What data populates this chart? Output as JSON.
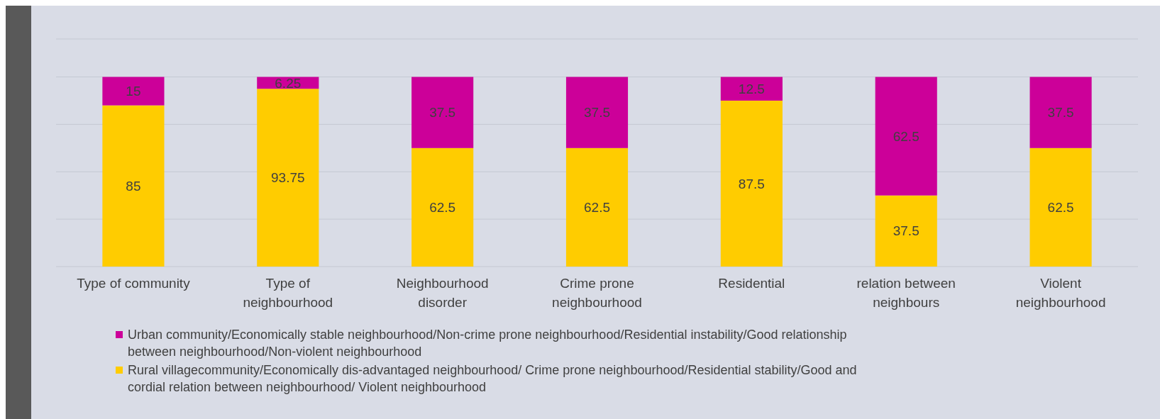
{
  "chart_data": {
    "type": "bar",
    "stacked": true,
    "categories": [
      "Type of community",
      "Type of neighbourhood",
      "Neighbourhood disorder",
      "Crime prone neighbourhood",
      "Residential",
      "relation between neighbours",
      "Violent neighbourhood"
    ],
    "series": [
      {
        "name": "Rural villagecommunity/Economically dis-advantaged neighbourhood/ Crime prone neighbourhood/Residential stability/Good and cordial relation between neighbourhood/ Violent neighbourhood",
        "color": "#ffcc00",
        "values": [
          85,
          93.75,
          62.5,
          62.5,
          87.5,
          37.5,
          62.5
        ]
      },
      {
        "name": "Urban community/Economically stable neighbourhood/Non-crime prone neighbourhood/Residential instability/Good relationship between neighbourhood/Non-violent neighbourhood",
        "color": "#cc0099",
        "values": [
          15,
          6.25,
          37.5,
          37.5,
          12.5,
          62.5,
          37.5
        ]
      }
    ],
    "ylim": [
      0,
      120
    ],
    "yticks": [
      {
        "value": 0,
        "label": null
      },
      {
        "value": 25,
        "label": null
      },
      {
        "value": 50,
        "label": null
      },
      {
        "value": 75,
        "label": null
      },
      {
        "value": 100,
        "label": null
      },
      {
        "value": 120,
        "label": null
      }
    ],
    "tick_labels": "x",
    "grid": "y",
    "data_labels": true,
    "legend": "bottom"
  }
}
